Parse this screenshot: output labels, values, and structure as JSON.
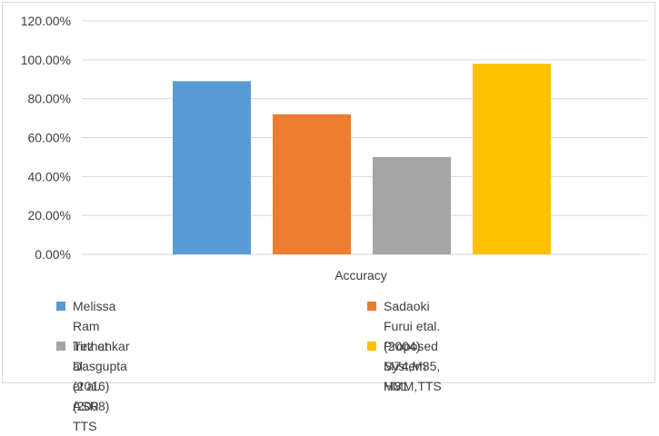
{
  "chart_data": {
    "type": "bar",
    "title": "",
    "xlabel": "Accuracy",
    "ylabel": "",
    "ylim": [
      0,
      1.2
    ],
    "yticks": [
      "0.00%",
      "20.00%",
      "40.00%",
      "60.00%",
      "80.00%",
      "100.00%",
      "120.00%"
    ],
    "grid": true,
    "legend_position": "bottom",
    "categories": [
      "Accuracy"
    ],
    "series": [
      {
        "name": "Melissa Ram írez et al. (2016) ASR",
        "values": [
          0.89
        ],
        "color": "#5b9bd5"
      },
      {
        "name": "Sadaoki Furui etal.(2004)\nM74,M35, M31",
        "values": [
          0.72
        ],
        "color": "#ed7d31"
      },
      {
        "name": "Tirthankar Dasgupta et al.(2008)\nTTS",
        "values": [
          0.5
        ],
        "color": "#a5a5a5"
      },
      {
        "name": "Proposed System HMM,TTS",
        "values": [
          0.98
        ],
        "color": "#ffc000"
      }
    ]
  }
}
